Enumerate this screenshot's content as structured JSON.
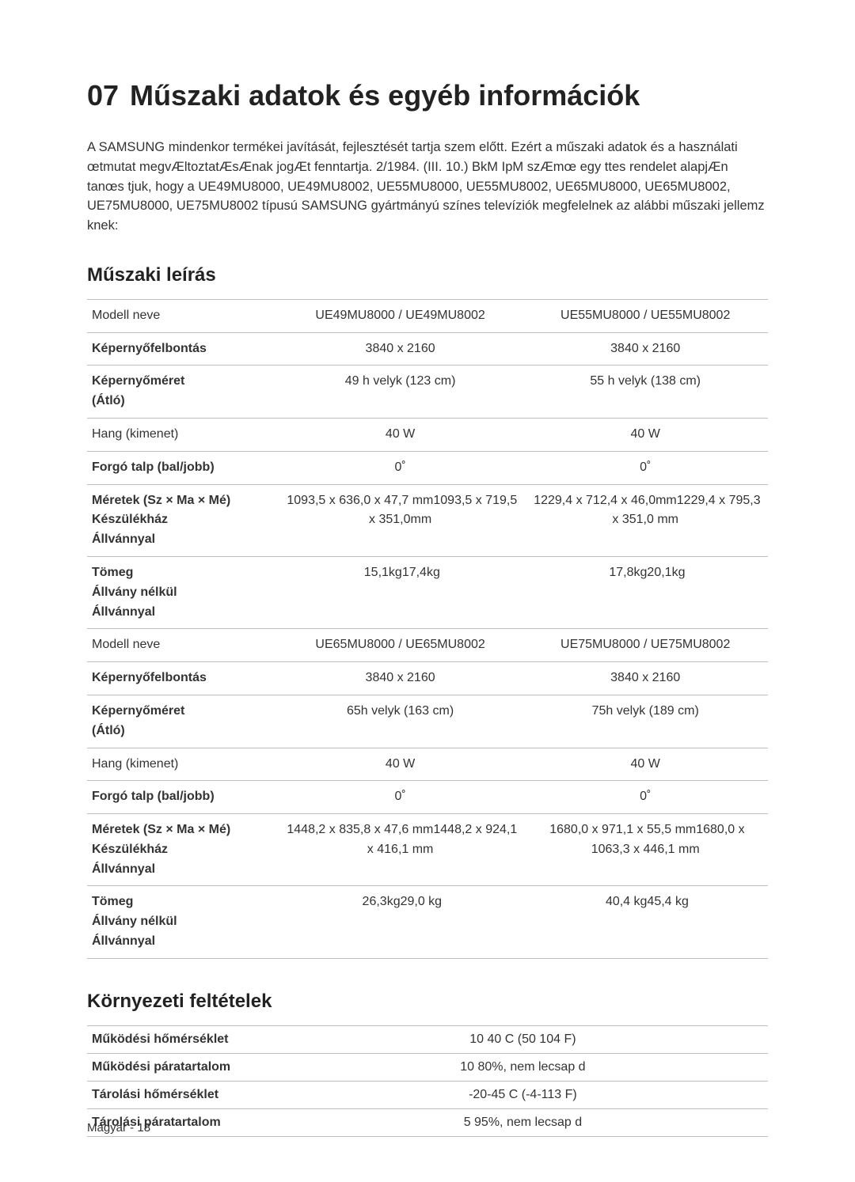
{
  "title_num": "07",
  "title_text": "Műszaki adatok és egyéb információk",
  "intro": "A SAMSUNG mindenkor termékei javítását, fejlesztését tartja szem előtt. Ezért a műszaki adatok és a használati œtmutat megvÆltoztatÆsÆnak jogÆt fenntartja. 2/1984. (III. 10.) BkM IpM szÆmœ egy ttes rendelet alapjÆn tanœs tjuk, hogy a UE49MU8000, UE49MU8002, UE55MU8000, UE55MU8002, UE65MU8000, UE65MU8002, UE75MU8000, UE75MU8002 típusú SAMSUNG gyártmányú színes televíziók megfelelnek az alábbi műszaki jellemz knek:",
  "sub1": "Műszaki leírás",
  "sub2": "Környezeti feltételek",
  "colors": {
    "text": "#333333",
    "heading": "#222222",
    "border": "#bfbfbf",
    "background": "#ffffff"
  },
  "fonts": {
    "body_size_pt": 12,
    "title_size_pt": 27,
    "subheading_size_pt": 18
  },
  "spec_table": {
    "rows": [
      {
        "label": "Modell neve",
        "bold": false,
        "c1": "UE49MU8000 / UE49MU8002",
        "c2": "UE55MU8000 / UE55MU8002"
      },
      {
        "label": "Képernyőfelbontás",
        "bold": true,
        "c1": "3840 x 2160",
        "c2": "3840 x 2160"
      },
      {
        "label": "Képernyőméret\n(Átló)",
        "bold": true,
        "c1": "49 h velyk (123 cm)",
        "c2": "55 h velyk (138 cm)"
      },
      {
        "label": "Hang (kimenet)",
        "bold": false,
        "c1": "40 W",
        "c2": "40 W"
      },
      {
        "label": "Forgó talp (bal/jobb)",
        "bold": true,
        "c1": "0˚",
        "c2": "0˚"
      },
      {
        "label": "Méretek (Sz × Ma × Mé)\nKészülékház\nÁllvánnyal",
        "bold": true,
        "c1": "\n1093,5 x 636,0 x 47,7 mm\n1093,5 x 719,5 x 351,0mm",
        "c2": "\n1229,4 x 712,4 x 46,0mm\n1229,4 x 795,3 x 351,0 mm"
      },
      {
        "label": "Tömeg\nÁllvány nélkül\nÁllvánnyal",
        "bold": true,
        "c1": "\n15,1kg\n17,4kg",
        "c2": "\n17,8kg\n20,1kg"
      },
      {
        "label": "Modell neve",
        "bold": false,
        "c1": "UE65MU8000 / UE65MU8002",
        "c2": "UE75MU8000 / UE75MU8002"
      },
      {
        "label": "Képernyőfelbontás",
        "bold": true,
        "c1": "3840 x 2160",
        "c2": "3840 x 2160"
      },
      {
        "label": "Képernyőméret\n(Átló)",
        "bold": true,
        "c1": "65h velyk (163 cm)",
        "c2": "75h velyk (189 cm)"
      },
      {
        "label": "Hang (kimenet)",
        "bold": false,
        "c1": "40 W",
        "c2": "40 W"
      },
      {
        "label": "Forgó talp (bal/jobb)",
        "bold": true,
        "c1": "0˚",
        "c2": "0˚"
      },
      {
        "label": "Méretek (Sz × Ma × Mé)\nKészülékház\nÁllvánnyal",
        "bold": true,
        "c1": "\n1448,2 x 835,8 x 47,6 mm\n1448,2 x 924,1 x 416,1 mm",
        "c2": "\n1680,0 x 971,1 x 55,5 mm\n1680,0 x 1063,3 x 446,1 mm"
      },
      {
        "label": "Tömeg\nÁllvány nélkül\nÁllvánnyal",
        "bold": true,
        "c1": "\n26,3kg\n29,0 kg",
        "c2": "\n40,4 kg\n45,4 kg"
      }
    ]
  },
  "env_table": {
    "rows": [
      {
        "label": "Működési hőmérséklet",
        "val": "10 40  C (50 104  F)"
      },
      {
        "label": "Működési páratartalom",
        "val": "10 80%, nem lecsap d"
      },
      {
        "label": "Tárolási hőmérséklet",
        "val": "-20-45  C (-4-113  F)"
      },
      {
        "label": "Tárolási páratartalom",
        "val": "5 95%, nem lecsap d"
      }
    ]
  },
  "footer": "Magyar - 18"
}
